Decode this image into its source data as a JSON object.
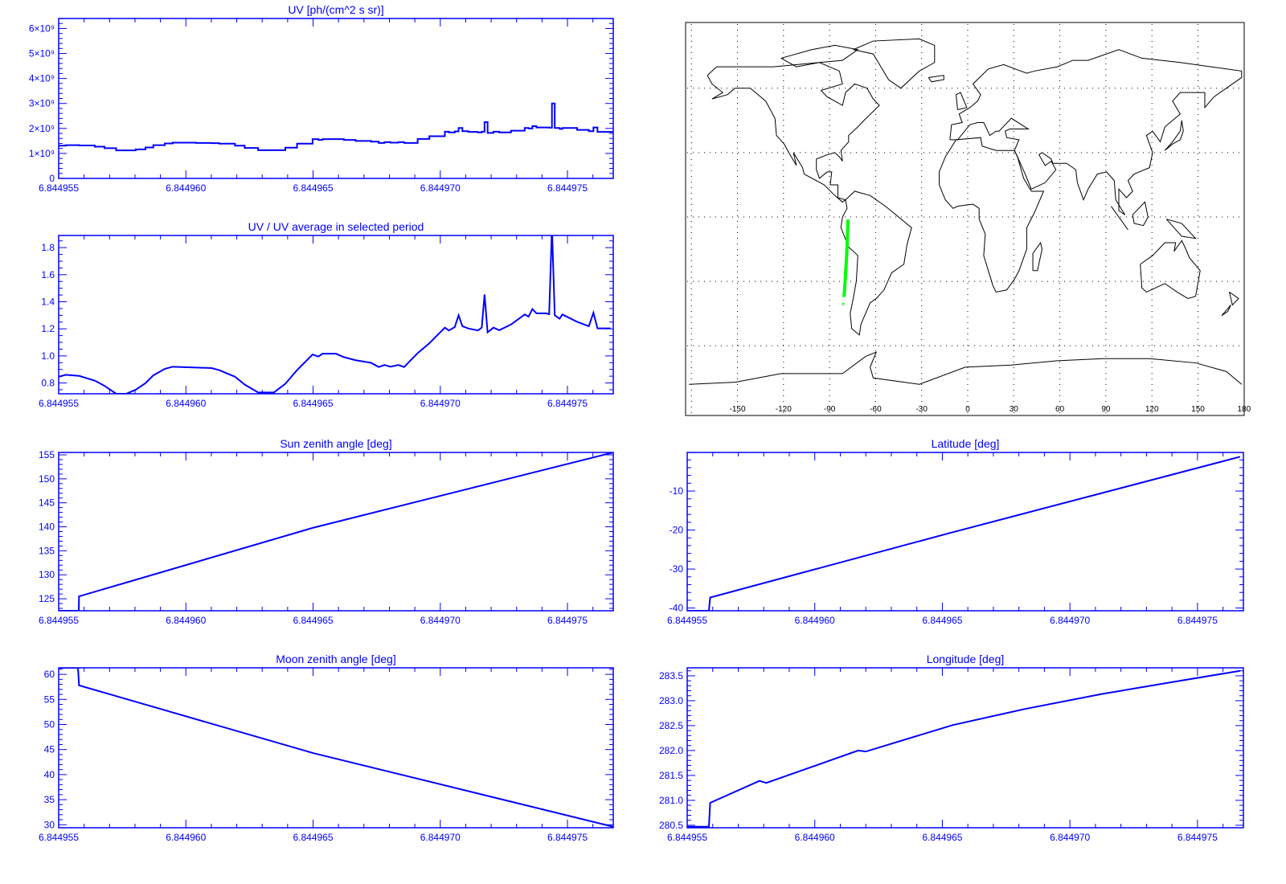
{
  "colors": {
    "axis": "#0000ff",
    "line": "#0000ff",
    "track": "#00ff00",
    "coast": "#000000",
    "grid": "#000000"
  },
  "chart_data": [
    {
      "type": "line",
      "style": "step",
      "title": "UV [ph/(cm^2 s sr)]",
      "xlim": [
        6.844955,
        6.8449768
      ],
      "ylim": [
        0,
        6400000000.0
      ],
      "xticks": [
        6.844955,
        6.84496,
        6.844965,
        6.84497,
        6.844975
      ],
      "xtick_labels": [
        "6.844955",
        "6.844960",
        "6.844965",
        "6.844970",
        "6.844975"
      ],
      "x_minor_step": 1e-06,
      "yticks": [
        0,
        1000000000.0,
        2000000000.0,
        3000000000.0,
        4000000000.0,
        5000000000.0,
        6000000000.0
      ],
      "ytick_labels": [
        "0",
        "1×10⁹",
        "2×10⁹",
        "3×10⁹",
        "4×10⁹",
        "5×10⁹",
        "6×10⁹"
      ],
      "y_minor_step": 200000000.0,
      "x": [
        6.844955,
        6.84495528,
        6.84495581,
        6.84495642,
        6.8449568,
        6.84495726,
        6.84495765,
        6.84495803,
        6.84495841,
        6.84495872,
        6.84495917,
        6.84495948,
        6.8449604,
        6.84496101,
        6.84496131,
        6.84496193,
        6.84496231,
        6.84496284,
        6.84496346,
        6.84496391,
        6.84496437,
        6.84496498,
        6.84496521,
        6.84496537,
        6.8449659,
        6.84496621,
        6.84496667,
        6.84496728,
        6.84496758,
        6.84496781,
        6.84496804,
        6.84496835,
        6.84496858,
        6.84496911,
        6.84496957,
        6.84497018,
        6.84497034,
        6.84497057,
        6.84497072,
        6.84497087,
        6.8449711,
        6.84497148,
        6.84497163,
        6.84497174,
        6.84497186,
        6.84497209,
        6.84497232,
        6.84497278,
        6.84497332,
        6.84497347,
        6.84497362,
        6.84497378,
        6.84497416,
        6.84497428,
        6.84497439,
        6.8449745,
        6.84497469,
        6.8449748,
        6.84497538,
        6.84497584,
        6.84497602,
        6.84497618,
        6.8449767
      ],
      "y": [
        1310000000.0,
        1330000000.0,
        1320000000.0,
        1270000000.0,
        1210000000.0,
        1120000000.0,
        1120000000.0,
        1160000000.0,
        1240000000.0,
        1330000000.0,
        1400000000.0,
        1430000000.0,
        1420000000.0,
        1410000000.0,
        1390000000.0,
        1310000000.0,
        1220000000.0,
        1130000000.0,
        1130000000.0,
        1230000000.0,
        1390000000.0,
        1570000000.0,
        1540000000.0,
        1570000000.0,
        1570000000.0,
        1540000000.0,
        1500000000.0,
        1470000000.0,
        1420000000.0,
        1450000000.0,
        1430000000.0,
        1450000000.0,
        1420000000.0,
        1580000000.0,
        1690000000.0,
        1870000000.0,
        1840000000.0,
        1880000000.0,
        2020000000.0,
        1890000000.0,
        1860000000.0,
        1840000000.0,
        1870000000.0,
        2250000000.0,
        1820000000.0,
        1870000000.0,
        1840000000.0,
        1910000000.0,
        2020000000.0,
        2000000000.0,
        2090000000.0,
        2040000000.0,
        2040000000.0,
        2030000000.0,
        3000000000.0,
        2020000000.0,
        1980000000.0,
        2020000000.0,
        1940000000.0,
        1890000000.0,
        2040000000.0,
        1860000000.0,
        1860000000.0
      ]
    },
    {
      "type": "line",
      "title": "UV / UV average in selected period",
      "xlim": [
        6.844955,
        6.8449768
      ],
      "ylim": [
        0.72,
        1.89
      ],
      "xticks": [
        6.844955,
        6.84496,
        6.844965,
        6.84497,
        6.844975
      ],
      "xtick_labels": [
        "6.844955",
        "6.844960",
        "6.844965",
        "6.844970",
        "6.844975"
      ],
      "x_minor_step": 1e-06,
      "yticks": [
        0.8,
        1.0,
        1.2,
        1.4,
        1.6,
        1.8
      ],
      "ytick_labels": [
        "0.8",
        "1.0",
        "1.2",
        "1.4",
        "1.6",
        "1.8"
      ],
      "y_minor_step": 0.05,
      "x": [
        6.844955,
        6.84495528,
        6.84495581,
        6.84495642,
        6.8449568,
        6.84495726,
        6.84495765,
        6.84495803,
        6.84495841,
        6.84495872,
        6.84495917,
        6.84495948,
        6.8449604,
        6.84496101,
        6.84496131,
        6.84496193,
        6.84496231,
        6.84496284,
        6.84496346,
        6.84496391,
        6.84496437,
        6.84496498,
        6.84496521,
        6.84496537,
        6.8449659,
        6.84496621,
        6.84496667,
        6.84496728,
        6.84496758,
        6.84496781,
        6.84496804,
        6.84496835,
        6.84496858,
        6.84496911,
        6.84496957,
        6.84497018,
        6.84497034,
        6.84497057,
        6.84497072,
        6.84497087,
        6.8449711,
        6.84497148,
        6.84497163,
        6.84497174,
        6.84497186,
        6.84497209,
        6.84497232,
        6.84497278,
        6.84497332,
        6.84497347,
        6.84497362,
        6.84497378,
        6.84497416,
        6.84497428,
        6.84497439,
        6.8449745,
        6.84497469,
        6.8449748,
        6.84497538,
        6.84497584,
        6.84497602,
        6.84497618,
        6.8449767
      ],
      "y": [
        0.846,
        0.86,
        0.852,
        0.817,
        0.779,
        0.72,
        0.72,
        0.75,
        0.798,
        0.856,
        0.904,
        0.92,
        0.914,
        0.91,
        0.895,
        0.846,
        0.788,
        0.73,
        0.73,
        0.794,
        0.895,
        1.01,
        0.995,
        1.016,
        1.016,
        0.991,
        0.968,
        0.949,
        0.918,
        0.933,
        0.92,
        0.933,
        0.918,
        1.02,
        1.093,
        1.209,
        1.188,
        1.213,
        1.3,
        1.219,
        1.203,
        1.188,
        1.209,
        1.454,
        1.174,
        1.209,
        1.19,
        1.232,
        1.306,
        1.29,
        1.346,
        1.315,
        1.315,
        1.308,
        1.95,
        1.3,
        1.275,
        1.306,
        1.252,
        1.219,
        1.319,
        1.203,
        1.203
      ]
    },
    {
      "type": "line",
      "title": "Sun zenith angle [deg]",
      "xlim": [
        6.844955,
        6.8449768
      ],
      "ylim": [
        122.5,
        155.5
      ],
      "xticks": [
        6.844955,
        6.84496,
        6.844965,
        6.84497,
        6.844975
      ],
      "xtick_labels": [
        "6.844955",
        "6.844960",
        "6.844965",
        "6.844970",
        "6.844975"
      ],
      "x_minor_step": 1e-06,
      "yticks": [
        125,
        130,
        135,
        140,
        145,
        150,
        155
      ],
      "ytick_labels": [
        "125",
        "130",
        "135",
        "140",
        "145",
        "150",
        "155"
      ],
      "y_minor_step": 1,
      "x": [
        6.844955,
        6.84495579,
        6.8449558,
        6.844965,
        6.8449768
      ],
      "y": [
        122.5,
        122.5,
        125.5,
        139.8,
        155.5
      ]
    },
    {
      "type": "line",
      "title": "Moon zenith angle [deg]",
      "xlim": [
        6.844955,
        6.8449768
      ],
      "ylim": [
        29.4,
        61.3
      ],
      "xticks": [
        6.844955,
        6.84496,
        6.844965,
        6.84497,
        6.844975
      ],
      "xtick_labels": [
        "6.844955",
        "6.844960",
        "6.844965",
        "6.844970",
        "6.844975"
      ],
      "x_minor_step": 1e-06,
      "yticks": [
        30,
        35,
        40,
        45,
        50,
        55,
        60
      ],
      "ytick_labels": [
        "30",
        "35",
        "40",
        "45",
        "50",
        "55",
        "60"
      ],
      "y_minor_step": 1,
      "x": [
        6.844955,
        6.84495576,
        6.8449558,
        6.844965,
        6.8449768
      ],
      "y": [
        61.3,
        61.3,
        57.8,
        44.3,
        29.6
      ]
    },
    {
      "type": "line",
      "title": "Latitude [deg]",
      "xlim": [
        6.844955,
        6.8449768
      ],
      "ylim": [
        -40.7,
        -0.1
      ],
      "xticks": [
        6.844955,
        6.84496,
        6.844965,
        6.84497,
        6.844975
      ],
      "xtick_labels": [
        "6.844955",
        "6.844960",
        "6.844965",
        "6.844970",
        "6.844975"
      ],
      "x_minor_step": 1e-06,
      "yticks": [
        -40,
        -30,
        -20,
        -10
      ],
      "ytick_labels": [
        "-40",
        "-30",
        "-20",
        "-10"
      ],
      "y_minor_step": 2,
      "x": [
        6.844955,
        6.84495585,
        6.8449559,
        6.84496527,
        6.84497667
      ],
      "y": [
        -40.7,
        -40.7,
        -37.3,
        -20.8,
        -1.2
      ]
    },
    {
      "type": "line",
      "title": "Longitude [deg]",
      "xlim": [
        6.844955,
        6.8449768
      ],
      "ylim": [
        280.45,
        283.66
      ],
      "xticks": [
        6.844955,
        6.84496,
        6.844965,
        6.84497,
        6.844975
      ],
      "xtick_labels": [
        "6.844955",
        "6.844960",
        "6.844965",
        "6.844970",
        "6.844975"
      ],
      "x_minor_step": 1e-06,
      "yticks": [
        280.5,
        281.0,
        281.5,
        282.0,
        282.5,
        283.0,
        283.5
      ],
      "ytick_labels": [
        "280.5",
        "281.0",
        "281.5",
        "282.0",
        "282.5",
        "283.0",
        "283.5"
      ],
      "y_minor_step": 0.1,
      "x": [
        6.844955,
        6.84495585,
        6.8449559,
        6.84495783,
        6.8449581,
        6.8449617,
        6.844962,
        6.8449654,
        6.8449682,
        6.8449712,
        6.8449742,
        6.84497667
      ],
      "y": [
        280.47,
        280.47,
        280.95,
        281.39,
        281.35,
        282.0,
        281.98,
        282.51,
        282.83,
        283.13,
        283.39,
        283.6
      ]
    }
  ],
  "map": {
    "type": "map",
    "lon_ticks": [
      -150,
      -120,
      -90,
      -60,
      -30,
      0,
      30,
      60,
      90,
      120,
      150,
      180
    ],
    "lon_tick_labels": [
      "-150",
      "-120",
      "-90",
      "-60",
      "-30",
      "0",
      "30",
      "60",
      "90",
      "120",
      "150",
      "180"
    ],
    "grid_lat": [
      60,
      30,
      0,
      -30,
      -60
    ],
    "grid": true,
    "track_marker": "*"
  }
}
